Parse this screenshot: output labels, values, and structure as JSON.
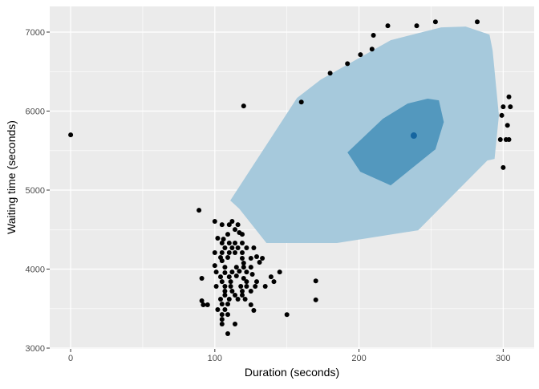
{
  "chart_data": {
    "type": "scatter",
    "title": "",
    "xlabel": "Duration (seconds)",
    "ylabel": "Waiting time (seconds)",
    "xlim": [
      -14.5,
      321.5
    ],
    "ylim": [
      2990,
      7325
    ],
    "x_ticks": [
      0,
      100,
      200,
      300
    ],
    "y_ticks": [
      3000,
      4000,
      5000,
      6000,
      7000
    ],
    "x_tick_labels": [
      "0",
      "100",
      "200",
      "300"
    ],
    "y_tick_labels": [
      "3000",
      "4000",
      "5000",
      "6000",
      "7000"
    ],
    "grid": true,
    "legend": "none",
    "colors": {
      "panel": "#ebebeb",
      "grid": "#ffffff",
      "outer_region": "#a6c9dc",
      "inner_region": "#5398be",
      "median": "#1565a0",
      "points": "#000000"
    },
    "outer_region": [
      [
        110.7,
        4868
      ],
      [
        157,
        6167
      ],
      [
        173.6,
        6400
      ],
      [
        222,
        6898
      ],
      [
        257,
        7060
      ],
      [
        274,
        7070
      ],
      [
        290.5,
        6969
      ],
      [
        292.7,
        6766
      ],
      [
        297,
        5944
      ],
      [
        294,
        5395
      ],
      [
        289,
        5375
      ],
      [
        241,
        4492
      ],
      [
        184.7,
        4330
      ],
      [
        135.8,
        4330
      ],
      [
        116.9,
        4766
      ]
    ],
    "inner_region": [
      [
        192,
        5477
      ],
      [
        216.5,
        5903
      ],
      [
        233.7,
        6096
      ],
      [
        247.6,
        6157
      ],
      [
        255.4,
        6136
      ],
      [
        258.8,
        5862
      ],
      [
        253,
        5517
      ],
      [
        222,
        5060
      ],
      [
        200.9,
        5233
      ]
    ],
    "median": [
      238,
      5690
    ],
    "points": [
      [
        0,
        5700
      ],
      [
        89,
        4745
      ],
      [
        120,
        6065
      ],
      [
        160,
        6115
      ],
      [
        180,
        6480
      ],
      [
        192,
        6600
      ],
      [
        201,
        6715
      ],
      [
        209,
        6785
      ],
      [
        210,
        6960
      ],
      [
        220,
        7080
      ],
      [
        240,
        7080
      ],
      [
        253,
        7130
      ],
      [
        282,
        7130
      ],
      [
        304,
        6180
      ],
      [
        300,
        6055
      ],
      [
        305,
        6055
      ],
      [
        299,
        5945
      ],
      [
        303,
        5820
      ],
      [
        298,
        5640
      ],
      [
        302,
        5640
      ],
      [
        304,
        5640
      ],
      [
        300,
        5285
      ],
      [
        170,
        3850
      ],
      [
        170,
        3610
      ],
      [
        150,
        3425
      ],
      [
        100,
        4604
      ],
      [
        105,
        4563
      ],
      [
        110,
        4563
      ],
      [
        112,
        4604
      ],
      [
        116,
        4563
      ],
      [
        114,
        4502
      ],
      [
        117,
        4462
      ],
      [
        119,
        4441
      ],
      [
        109,
        4441
      ],
      [
        102,
        4391
      ],
      [
        106,
        4380
      ],
      [
        105,
        4330
      ],
      [
        110,
        4330
      ],
      [
        114,
        4330
      ],
      [
        119,
        4330
      ],
      [
        107,
        4269
      ],
      [
        112,
        4269
      ],
      [
        116,
        4269
      ],
      [
        122,
        4269
      ],
      [
        127,
        4269
      ],
      [
        100,
        4208
      ],
      [
        105,
        4208
      ],
      [
        110,
        4208
      ],
      [
        114,
        4208
      ],
      [
        119,
        4208
      ],
      [
        104,
        4147
      ],
      [
        109,
        4147
      ],
      [
        119,
        4137
      ],
      [
        125,
        4137
      ],
      [
        129,
        4157
      ],
      [
        133,
        4137
      ],
      [
        105,
        4106
      ],
      [
        131,
        4086
      ],
      [
        120,
        4076
      ],
      [
        100,
        4045
      ],
      [
        107,
        4025
      ],
      [
        115,
        4025
      ],
      [
        120,
        4025
      ],
      [
        125,
        4025
      ],
      [
        101,
        3964
      ],
      [
        107,
        3954
      ],
      [
        112,
        3964
      ],
      [
        117,
        3974
      ],
      [
        122,
        3964
      ],
      [
        126,
        3934
      ],
      [
        145,
        3964
      ],
      [
        139,
        3903
      ],
      [
        91,
        3883
      ],
      [
        104,
        3903
      ],
      [
        110,
        3903
      ],
      [
        115,
        3914
      ],
      [
        120,
        3883
      ],
      [
        105,
        3842
      ],
      [
        111,
        3842
      ],
      [
        122,
        3842
      ],
      [
        129,
        3842
      ],
      [
        141,
        3842
      ],
      [
        101,
        3782
      ],
      [
        107,
        3782
      ],
      [
        111,
        3782
      ],
      [
        118,
        3782
      ],
      [
        122,
        3782
      ],
      [
        128,
        3782
      ],
      [
        135,
        3782
      ],
      [
        107,
        3721
      ],
      [
        112,
        3721
      ],
      [
        119,
        3721
      ],
      [
        125,
        3721
      ],
      [
        107,
        3670
      ],
      [
        114,
        3670
      ],
      [
        119,
        3670
      ],
      [
        104,
        3619
      ],
      [
        110,
        3619
      ],
      [
        116,
        3619
      ],
      [
        121,
        3619
      ],
      [
        91,
        3599
      ],
      [
        92,
        3548
      ],
      [
        95,
        3548
      ],
      [
        105,
        3558
      ],
      [
        109,
        3558
      ],
      [
        125,
        3548
      ],
      [
        102,
        3487
      ],
      [
        107,
        3487
      ],
      [
        127,
        3477
      ],
      [
        105,
        3426
      ],
      [
        109,
        3426
      ],
      [
        105,
        3365
      ],
      [
        105,
        3305
      ],
      [
        114,
        3305
      ],
      [
        109,
        3183
      ]
    ]
  }
}
